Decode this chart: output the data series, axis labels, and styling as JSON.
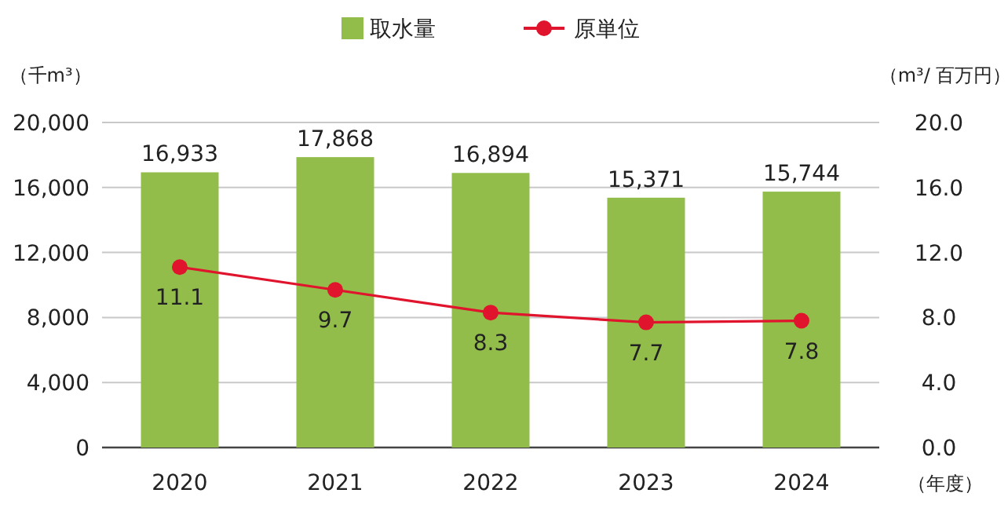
{
  "chart_data": {
    "type": "bar",
    "categories": [
      "2020",
      "2021",
      "2022",
      "2023",
      "2024"
    ],
    "series": [
      {
        "name": "取水量",
        "color": "#92bd4a",
        "values": [
          16933,
          17868,
          16894,
          15371,
          15744
        ],
        "value_labels": [
          "16,933",
          "17,868",
          "16,894",
          "15,371",
          "15,744"
        ]
      },
      {
        "name": "原単位",
        "type": "line",
        "axis": "y2",
        "color": "#e0142d",
        "marker": "circle",
        "line_style": "solid",
        "values": [
          11.1,
          9.7,
          8.3,
          7.7,
          7.8
        ],
        "value_labels": [
          "11.1",
          "9.7",
          "8.3",
          "7.7",
          "7.8"
        ]
      }
    ],
    "ylim": [
      0,
      20000
    ],
    "yticks": [
      {
        "value": 0,
        "label": "0"
      },
      {
        "value": 4000,
        "label": "4,000"
      },
      {
        "value": 8000,
        "label": "8,000"
      },
      {
        "value": 12000,
        "label": "12,000"
      },
      {
        "value": 16000,
        "label": "16,000"
      },
      {
        "value": 20000,
        "label": "20,000"
      }
    ],
    "y2lim": [
      0,
      20
    ],
    "y2ticks": [
      {
        "value": 0,
        "label": "0.0"
      },
      {
        "value": 4,
        "label": "4.0"
      },
      {
        "value": 8,
        "label": "8.0"
      },
      {
        "value": 12,
        "label": "12.0"
      },
      {
        "value": 16,
        "label": "16.0"
      },
      {
        "value": 20,
        "label": "20.0"
      }
    ],
    "ylabel": "（千m³）",
    "y2label": "（m³/ 百万円）",
    "xlabel": "（年度）",
    "grid": "y",
    "legend": "top"
  }
}
